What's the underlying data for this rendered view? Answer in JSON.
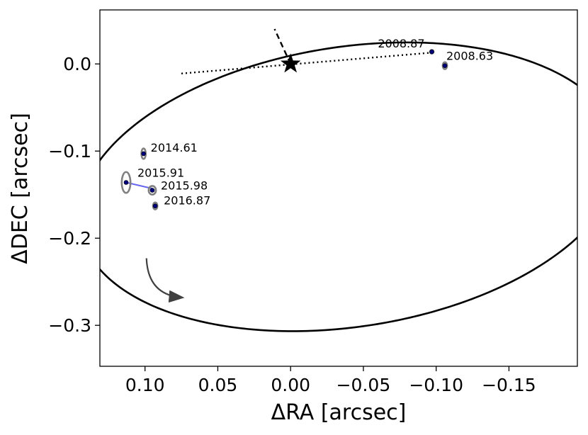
{
  "chart_data": {
    "type": "scatter",
    "title": "",
    "xlabel": "ΔRA [arcsec]",
    "ylabel": "ΔDEC [arcsec]",
    "x_inverted": true,
    "xlim": [
      0.131,
      -0.197
    ],
    "ylim": [
      -0.347,
      0.062
    ],
    "xticks": [
      {
        "value": 0.1,
        "label": "0.10"
      },
      {
        "value": 0.05,
        "label": "0.05"
      },
      {
        "value": 0.0,
        "label": "0.00"
      },
      {
        "value": -0.05,
        "label": "−0.05"
      },
      {
        "value": -0.1,
        "label": "−0.10"
      },
      {
        "value": -0.15,
        "label": "−0.15"
      }
    ],
    "yticks": [
      {
        "value": 0.0,
        "label": "0.0"
      },
      {
        "value": -0.1,
        "label": "−0.1"
      },
      {
        "value": -0.2,
        "label": "−0.2"
      },
      {
        "value": -0.3,
        "label": "−0.3"
      }
    ],
    "grid": false,
    "star": {
      "x": 0.0,
      "y": 0.0
    },
    "orbit": {
      "center_x": -0.0405,
      "center_y": -0.141,
      "semi_major": 0.196,
      "semi_minor": 0.1537,
      "rotation_deg": -30.6
    },
    "line_of_nodes": [
      {
        "x": 0.075,
        "y": -0.011
      },
      {
        "x": -0.097,
        "y": 0.013
      }
    ],
    "periastron_line": [
      {
        "x": 0.0,
        "y": 0.0
      },
      {
        "x": 0.011,
        "y": 0.04
      }
    ],
    "observations": [
      {
        "epoch": "2008.63",
        "x": -0.106,
        "y": -0.002,
        "err_x": 0.0015,
        "err_y": 0.004
      },
      {
        "epoch": "2008.87",
        "x": -0.097,
        "y": 0.014,
        "err_x": 0.001,
        "err_y": 0.002
      },
      {
        "epoch": "2014.61",
        "x": 0.101,
        "y": -0.103,
        "err_x": 0.0015,
        "err_y": 0.006
      },
      {
        "epoch": "2015.91",
        "x": 0.113,
        "y": -0.136,
        "err_x": 0.003,
        "err_y": 0.012
      },
      {
        "epoch": "2015.98",
        "x": 0.095,
        "y": -0.145,
        "err_x": 0.0025,
        "err_y": 0.005
      },
      {
        "epoch": "2016.87",
        "x": 0.093,
        "y": -0.163,
        "err_x": 0.0015,
        "err_y": 0.004
      }
    ],
    "residual_links": [
      {
        "from": {
          "x": 0.113,
          "y": -0.136
        },
        "to": {
          "x": 0.095,
          "y": -0.143
        }
      }
    ],
    "direction_arrow": {
      "start": {
        "x": 0.099,
        "y": -0.223
      },
      "end": {
        "x": 0.075,
        "y": -0.268
      }
    },
    "colors": {
      "orbit": "#000000",
      "observation": "#00007f",
      "error_ellipse": "#808080",
      "residual": "#6666ee",
      "arrow": "#404040"
    }
  }
}
